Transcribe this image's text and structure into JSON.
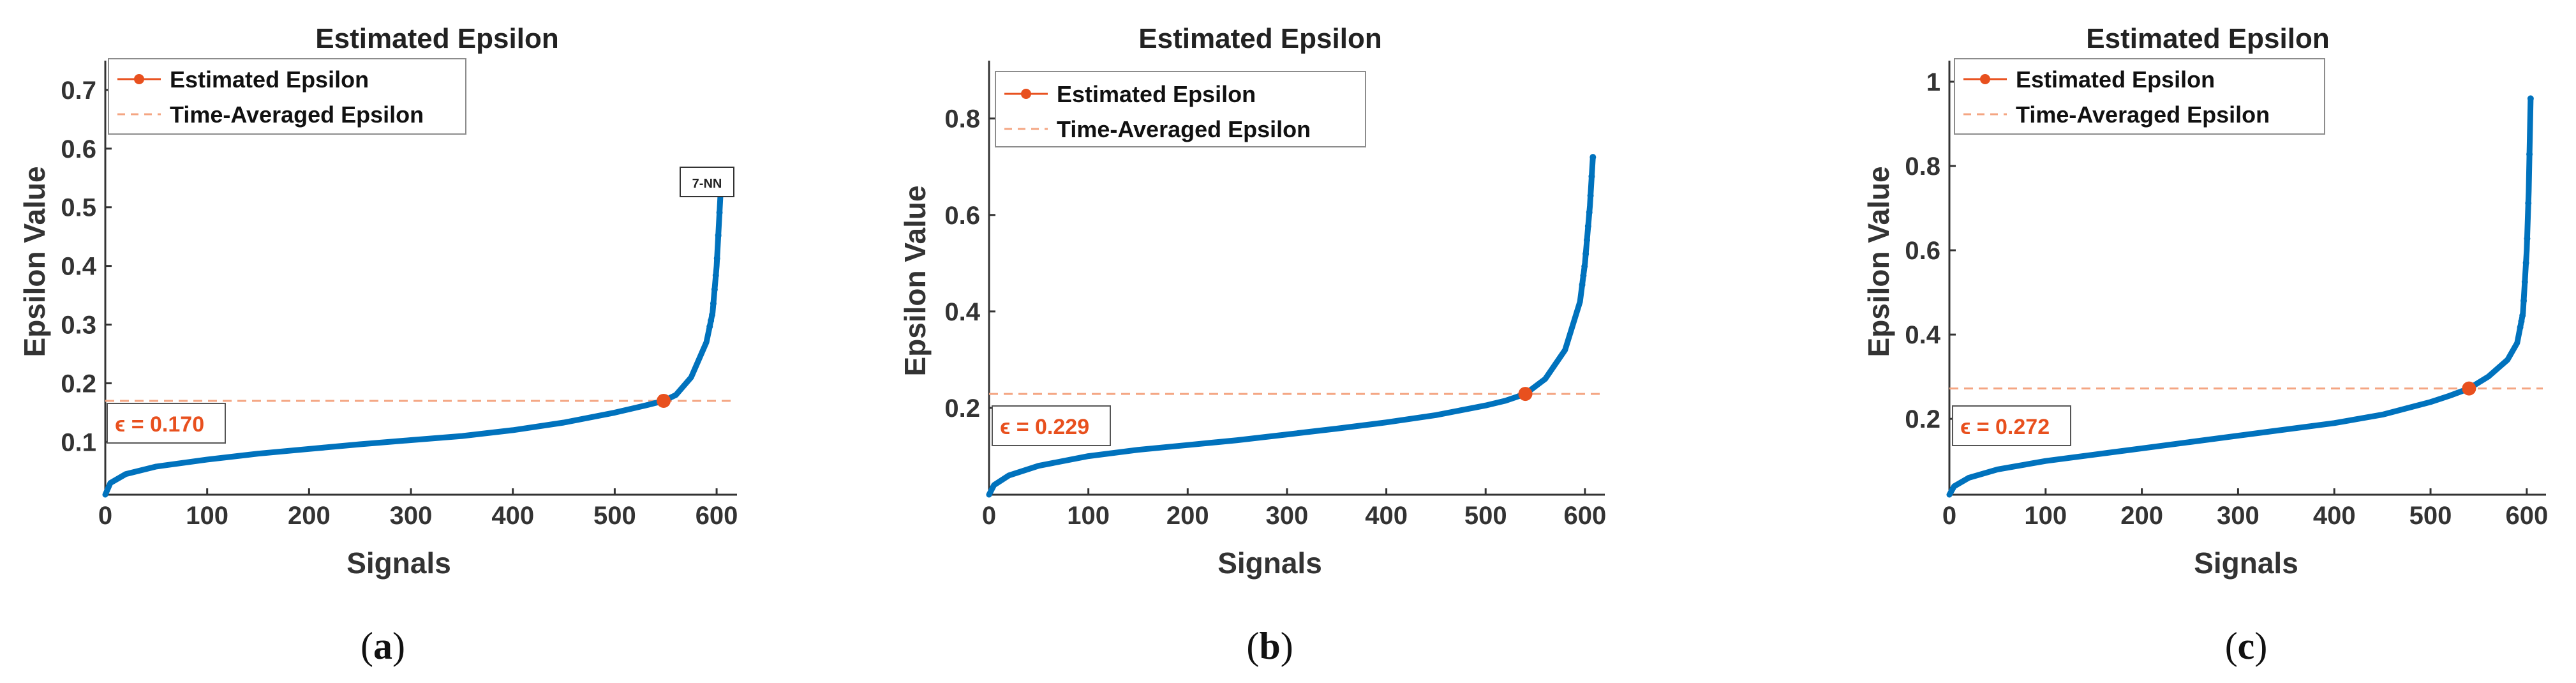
{
  "colors": {
    "curve": "#0072BD",
    "marker": "#E8501E",
    "dashed": "#F4A582",
    "eps_text": "#E8501E",
    "axis": "#333333"
  },
  "chart_data": [
    {
      "type": "line",
      "panel": "a",
      "panel_label": "(a)",
      "panel_letter": "a",
      "title": "Estimated Epsilon",
      "xlabel": "Signals",
      "ylabel": "Epsilon Value",
      "xlim": [
        0,
        620
      ],
      "ylim": [
        0.01,
        0.75
      ],
      "xticks": [
        0,
        100,
        200,
        300,
        400,
        500,
        600
      ],
      "yticks": [
        0.1,
        0.2,
        0.3,
        0.4,
        0.5,
        0.6,
        0.7
      ],
      "ytick_labels": [
        "0.1",
        "0.2",
        "0.3",
        "0.4",
        "0.5",
        "0.6",
        "0.7"
      ],
      "legend": [
        "Estimated Epsilon",
        "Time-Averaged Epsilon"
      ],
      "series": [
        {
          "name": "Estimated Epsilon",
          "x": [
            0,
            5,
            20,
            50,
            100,
            150,
            200,
            250,
            300,
            350,
            400,
            450,
            500,
            530,
            548,
            560,
            575,
            590,
            596,
            600,
            604
          ],
          "y": [
            0.01,
            0.03,
            0.045,
            0.058,
            0.07,
            0.08,
            0.088,
            0.096,
            0.103,
            0.11,
            0.12,
            0.133,
            0.15,
            0.162,
            0.17,
            0.18,
            0.21,
            0.27,
            0.32,
            0.4,
            0.53
          ]
        }
      ],
      "epsilon_point": {
        "x": 548,
        "y": 0.17
      },
      "time_averaged_epsilon": 0.17,
      "epsilon_label": "ϵ = 0.170",
      "annotation": {
        "text": "7-NN",
        "x": 604,
        "y": 0.53
      }
    },
    {
      "type": "line",
      "panel": "b",
      "panel_label": "(b)",
      "panel_letter": "b",
      "title": "Estimated Epsilon",
      "xlabel": "Signals",
      "ylabel": "Epsilon Value",
      "xlim": [
        0,
        620
      ],
      "ylim": [
        0.02,
        0.92
      ],
      "xticks": [
        0,
        100,
        200,
        300,
        400,
        500,
        600
      ],
      "yticks": [
        0.2,
        0.4,
        0.6,
        0.8
      ],
      "ytick_labels": [
        "0.2",
        "0.4",
        "0.6",
        "0.8"
      ],
      "legend": [
        "Estimated Epsilon",
        "Time-Averaged Epsilon"
      ],
      "series": [
        {
          "name": "Estimated Epsilon",
          "x": [
            0,
            5,
            20,
            50,
            100,
            150,
            200,
            250,
            300,
            350,
            400,
            450,
            500,
            520,
            540,
            560,
            580,
            595,
            600,
            605,
            608
          ],
          "y": [
            0.02,
            0.04,
            0.06,
            0.08,
            0.1,
            0.113,
            0.123,
            0.133,
            0.145,
            0.157,
            0.17,
            0.185,
            0.205,
            0.215,
            0.229,
            0.26,
            0.32,
            0.42,
            0.5,
            0.62,
            0.72
          ]
        }
      ],
      "epsilon_point": {
        "x": 540,
        "y": 0.229
      },
      "time_averaged_epsilon": 0.229,
      "epsilon_label": "ϵ = 0.229"
    },
    {
      "type": "line",
      "panel": "c",
      "panel_label": "(c)",
      "panel_letter": "c",
      "title": "Estimated Epsilon",
      "xlabel": "Signals",
      "ylabel": "Epsilon Value",
      "xlim": [
        0,
        620
      ],
      "ylim": [
        0.02,
        1.05
      ],
      "xticks": [
        0,
        100,
        200,
        300,
        400,
        500,
        600
      ],
      "yticks": [
        0.2,
        0.4,
        0.6,
        0.8,
        1.0
      ],
      "ytick_labels": [
        "0.2",
        "0.4",
        "0.6",
        "0.8",
        "1"
      ],
      "legend": [
        "Estimated Epsilon",
        "Time-Averaged Epsilon"
      ],
      "series": [
        {
          "name": "Estimated Epsilon",
          "x": [
            0,
            5,
            20,
            50,
            100,
            150,
            200,
            250,
            300,
            350,
            400,
            450,
            500,
            520,
            540,
            560,
            580,
            590,
            596,
            600,
            602,
            604
          ],
          "y": [
            0.02,
            0.04,
            0.06,
            0.08,
            0.1,
            0.115,
            0.13,
            0.145,
            0.16,
            0.175,
            0.19,
            0.21,
            0.24,
            0.255,
            0.272,
            0.3,
            0.34,
            0.38,
            0.45,
            0.6,
            0.74,
            0.96
          ]
        }
      ],
      "epsilon_point": {
        "x": 540,
        "y": 0.272
      },
      "time_averaged_epsilon": 0.272,
      "epsilon_label": "ϵ = 0.272"
    }
  ]
}
